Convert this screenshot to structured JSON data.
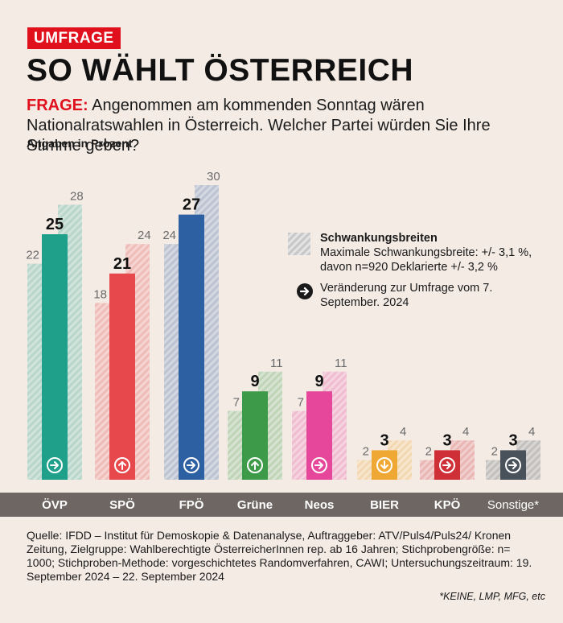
{
  "tag": "UMFRAGE",
  "title": "SO WÄHLT ÖSTERREICH",
  "question": {
    "label": "FRAGE:",
    "text": " Angenommen am kommenden Sonntag wären Nationalratswahlen in Österreich. Welcher Partei würden Sie Ihre Stimme geben?"
  },
  "subtitle": "Angaben in Prozent",
  "legend": {
    "range_title": "Schwankungsbreiten",
    "range_text": "Maximale Schwankungsbreite: +/- 3,1 %, davon n=920 Deklarierte +/- 3,2 %",
    "change_text": "Veränderung zur Umfrage vom 7. September. 2024"
  },
  "chart_data": {
    "type": "bar",
    "categories": [
      "ÖVP",
      "SPÖ",
      "FPÖ",
      "Grüne",
      "Neos",
      "BIER",
      "KPÖ",
      "Sonstige*"
    ],
    "series": [
      {
        "name": "",
        "values": [
          25,
          21,
          27,
          9,
          9,
          3,
          3,
          3
        ]
      }
    ],
    "lower": [
      22,
      18,
      24,
      7,
      7,
      2,
      2,
      2
    ],
    "upper": [
      28,
      24,
      30,
      11,
      11,
      4,
      4,
      4
    ],
    "change": [
      "right",
      "up",
      "right",
      "up",
      "right",
      "down",
      "right",
      "right"
    ],
    "colors": [
      "#1fa08a",
      "#e7484c",
      "#2d5fa3",
      "#3c9a48",
      "#e6479a",
      "#f0a834",
      "#cf3037",
      "#49525a"
    ],
    "ylim": [
      0,
      30
    ]
  },
  "footer": "Quelle: IFDD – Institut für Demoskopie & Datenanalyse, Auftraggeber: ATV/Puls4/Puls24/ Kronen Zeitung, Zielgruppe: Wahlberechtigte ÖsterreicherInnen rep. ab 16 Jahren; Stichprobengröße: n= 1000; Stichproben-Methode: vorgeschichtetes Randomverfahren, CAWI; Untersuchungszeitraum: 19. September 2024 – 22. September 2024",
  "footnote": "*KEINE, LMP, MFG, etc"
}
